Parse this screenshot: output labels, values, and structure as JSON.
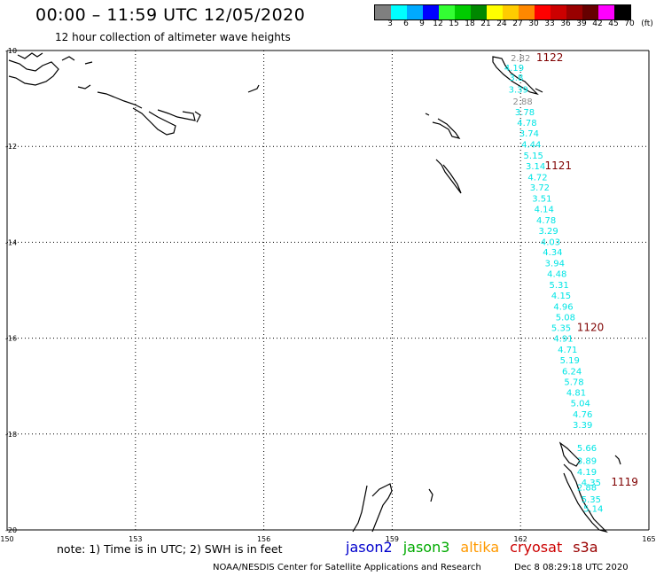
{
  "header": {
    "title": "00:00 – 11:59 UTC 12/05/2020",
    "subtitle": "12 hour collection of altimeter wave heights"
  },
  "colorbar": {
    "labels": [
      "3",
      "6",
      "9",
      "12",
      "15",
      "18",
      "21",
      "24",
      "27",
      "30",
      "33",
      "36",
      "39",
      "42",
      "45",
      "70",
      "(ft)"
    ],
    "colors": [
      "#7f7f7f",
      "#00ffff",
      "#00aaff",
      "#0000ff",
      "#33ff33",
      "#00cc00",
      "#008800",
      "#ffff00",
      "#ffcc00",
      "#ff8800",
      "#ff0000",
      "#cc0000",
      "#990000",
      "#660000",
      "#ff00ff",
      "#000000"
    ]
  },
  "footer": {
    "note": "note: 1) Time is in UTC; 2) SWH is in feet",
    "credit": "NOAA/NESDIS Center for Satellite Applications and Research",
    "timestamp": "Dec  8 08:29:18 UTC 2020",
    "satellites": [
      {
        "name": "jason2",
        "color": "#0000cc"
      },
      {
        "name": "jason3",
        "color": "#00aa00"
      },
      {
        "name": "altika",
        "color": "#ff9900"
      },
      {
        "name": "cryosat",
        "color": "#cc0000"
      },
      {
        "name": "s3a",
        "color": "#990000"
      }
    ]
  },
  "chart_data": {
    "type": "scatter",
    "xlim": [
      150,
      165
    ],
    "ylim": [
      -20,
      -10
    ],
    "xticks": [
      "150",
      "153",
      "156",
      "159",
      "162",
      "165"
    ],
    "yticks": [
      "-10",
      "-12",
      "-14",
      "-16",
      "-18",
      "-20"
    ],
    "grid": true,
    "points": [
      {
        "lon": 162.0,
        "lat": -10.15,
        "swh": "2.82",
        "color": "#8c8c8c"
      },
      {
        "lon": 161.85,
        "lat": -10.35,
        "swh": "4.19",
        "color": "#00e5e5"
      },
      {
        "lon": 161.9,
        "lat": -10.55,
        "swh": "3.8",
        "color": "#00e5e5"
      },
      {
        "lon": 161.95,
        "lat": -10.8,
        "swh": "3.39",
        "color": "#00e5e5"
      },
      {
        "lon": 162.05,
        "lat": -11.05,
        "swh": "2.88",
        "color": "#8c8c8c"
      },
      {
        "lon": 162.1,
        "lat": -11.28,
        "swh": "3.78",
        "color": "#00e5e5"
      },
      {
        "lon": 162.15,
        "lat": -11.5,
        "swh": "4.78",
        "color": "#00e5e5"
      },
      {
        "lon": 162.2,
        "lat": -11.72,
        "swh": "3.74",
        "color": "#00e5e5"
      },
      {
        "lon": 162.25,
        "lat": -11.95,
        "swh": "4.44",
        "color": "#00e5e5"
      },
      {
        "lon": 162.3,
        "lat": -12.18,
        "swh": "5.15",
        "color": "#00e5e5"
      },
      {
        "lon": 162.35,
        "lat": -12.4,
        "swh": "3.14",
        "color": "#00e5e5"
      },
      {
        "lon": 162.4,
        "lat": -12.63,
        "swh": "4.72",
        "color": "#00e5e5"
      },
      {
        "lon": 162.45,
        "lat": -12.85,
        "swh": "3.72",
        "color": "#00e5e5"
      },
      {
        "lon": 162.5,
        "lat": -13.08,
        "swh": "3.51",
        "color": "#00e5e5"
      },
      {
        "lon": 162.55,
        "lat": -13.3,
        "swh": "4.14",
        "color": "#00e5e5"
      },
      {
        "lon": 162.6,
        "lat": -13.53,
        "swh": "4.78",
        "color": "#00e5e5"
      },
      {
        "lon": 162.65,
        "lat": -13.75,
        "swh": "3.29",
        "color": "#00e5e5"
      },
      {
        "lon": 162.7,
        "lat": -13.98,
        "swh": "4.03",
        "color": "#00e5e5"
      },
      {
        "lon": 162.75,
        "lat": -14.2,
        "swh": "4.34",
        "color": "#00e5e5"
      },
      {
        "lon": 162.8,
        "lat": -14.43,
        "swh": "3.94",
        "color": "#00e5e5"
      },
      {
        "lon": 162.85,
        "lat": -14.65,
        "swh": "4.48",
        "color": "#00e5e5"
      },
      {
        "lon": 162.9,
        "lat": -14.88,
        "swh": "5.31",
        "color": "#00e5e5"
      },
      {
        "lon": 162.95,
        "lat": -15.1,
        "swh": "4.15",
        "color": "#00e5e5"
      },
      {
        "lon": 163.0,
        "lat": -15.33,
        "swh": "4.96",
        "color": "#00e5e5"
      },
      {
        "lon": 163.05,
        "lat": -15.55,
        "swh": "5.08",
        "color": "#00e5e5"
      },
      {
        "lon": 162.95,
        "lat": -15.78,
        "swh": "5.35",
        "color": "#00e5e5"
      },
      {
        "lon": 163.0,
        "lat": -16.0,
        "swh": "4.91",
        "color": "#00e5e5"
      },
      {
        "lon": 163.1,
        "lat": -16.23,
        "swh": "4.71",
        "color": "#00e5e5"
      },
      {
        "lon": 163.15,
        "lat": -16.45,
        "swh": "5.19",
        "color": "#00e5e5"
      },
      {
        "lon": 163.2,
        "lat": -16.68,
        "swh": "6.24",
        "color": "#00e5e5"
      },
      {
        "lon": 163.25,
        "lat": -16.9,
        "swh": "5.78",
        "color": "#00e5e5"
      },
      {
        "lon": 163.3,
        "lat": -17.13,
        "swh": "4.81",
        "color": "#00e5e5"
      },
      {
        "lon": 163.4,
        "lat": -17.35,
        "swh": "5.04",
        "color": "#00e5e5"
      },
      {
        "lon": 163.45,
        "lat": -17.58,
        "swh": "4.76",
        "color": "#00e5e5"
      },
      {
        "lon": 163.45,
        "lat": -17.8,
        "swh": "3.39",
        "color": "#00e5e5"
      },
      {
        "lon": 163.55,
        "lat": -18.28,
        "swh": "5.66",
        "color": "#00e5e5"
      },
      {
        "lon": 163.55,
        "lat": -18.55,
        "swh": "3.89",
        "color": "#00e5e5"
      },
      {
        "lon": 163.55,
        "lat": -18.78,
        "swh": "4.19",
        "color": "#00e5e5"
      },
      {
        "lon": 163.65,
        "lat": -19.0,
        "swh": "4.35",
        "color": "#00e5e5"
      },
      {
        "lon": 163.55,
        "lat": -19.1,
        "swh": "2.88",
        "color": "#00e5e5"
      },
      {
        "lon": 163.65,
        "lat": -19.35,
        "swh": "5.35",
        "color": "#00e5e5"
      },
      {
        "lon": 163.7,
        "lat": -19.55,
        "swh": "5.14",
        "color": "#00e5e5"
      }
    ],
    "orbit_labels": [
      {
        "text": "1122",
        "lon": 162.2,
        "lat": -10.15
      },
      {
        "text": "1121",
        "lon": 162.4,
        "lat": -12.4
      },
      {
        "text": "1120",
        "lon": 163.15,
        "lat": -15.78
      },
      {
        "text": "1119",
        "lon": 163.95,
        "lat": -19.0
      }
    ]
  }
}
